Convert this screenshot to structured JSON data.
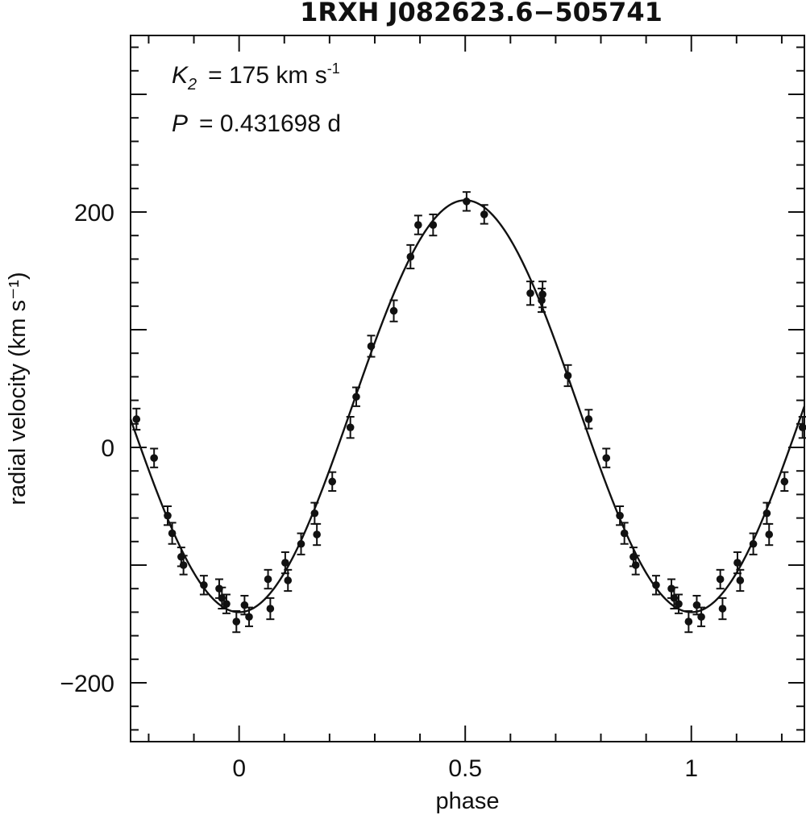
{
  "chart_data": {
    "type": "scatter",
    "title": "1RXH J082623.6−505741",
    "xlabel": "phase",
    "ylabel": "radial velocity (km s⁻¹)",
    "xlim": [
      -0.24,
      1.25
    ],
    "ylim": [
      -250,
      350
    ],
    "xticks_major": [
      0,
      0.5,
      1
    ],
    "xtick_labels": [
      "0",
      "0.5",
      "1"
    ],
    "yticks_major": [
      -200,
      0,
      200
    ],
    "ytick_labels": [
      "−200",
      "0",
      "200"
    ],
    "annotations": {
      "k_symbol": "K",
      "k_subscript": "2",
      "k_value": "= 175 km s",
      "k_exp": "-1",
      "p_symbol": "P",
      "p_value": "= 0.431698 d"
    },
    "model_curve": {
      "gamma": 35,
      "K": 175,
      "phase_of_max": 0.5
    },
    "series": [
      {
        "type": "errorbar",
        "points": [
          [
            -0.227,
            24,
            9
          ],
          [
            -0.188,
            -9,
            8
          ],
          [
            -0.158,
            -58,
            8
          ],
          [
            -0.148,
            -73,
            9
          ],
          [
            -0.128,
            -93,
            8
          ],
          [
            -0.123,
            -100,
            8
          ],
          [
            -0.078,
            -117,
            8
          ],
          [
            -0.044,
            -120,
            8
          ],
          [
            -0.038,
            -128,
            9
          ],
          [
            -0.028,
            -133,
            8
          ],
          [
            -0.006,
            -148,
            9
          ],
          [
            0.012,
            -134,
            8
          ],
          [
            0.022,
            -144,
            8
          ],
          [
            0.064,
            -112,
            8
          ],
          [
            0.069,
            -137,
            9
          ],
          [
            0.102,
            -98,
            9
          ],
          [
            0.108,
            -113,
            9
          ],
          [
            0.137,
            -82,
            9
          ],
          [
            0.167,
            -56,
            9
          ],
          [
            0.172,
            -74,
            9
          ],
          [
            0.206,
            -29,
            8
          ],
          [
            0.246,
            17,
            9
          ],
          [
            0.259,
            43,
            8
          ],
          [
            0.292,
            86,
            9
          ],
          [
            0.342,
            116,
            9
          ],
          [
            0.379,
            162,
            10
          ],
          [
            0.396,
            189,
            8
          ],
          [
            0.429,
            189,
            9
          ],
          [
            0.503,
            209,
            8
          ],
          [
            0.542,
            198,
            8
          ],
          [
            0.644,
            131,
            10
          ],
          [
            0.669,
            125,
            10
          ],
          [
            0.671,
            130,
            11
          ],
          [
            0.727,
            61,
            9
          ],
          [
            0.773,
            24,
            8
          ],
          [
            0.812,
            -9,
            8
          ],
          [
            0.842,
            -58,
            8
          ],
          [
            0.852,
            -73,
            9
          ],
          [
            0.872,
            -93,
            8
          ],
          [
            0.877,
            -100,
            8
          ],
          [
            0.922,
            -117,
            8
          ],
          [
            0.956,
            -120,
            8
          ],
          [
            0.962,
            -128,
            9
          ],
          [
            0.972,
            -133,
            8
          ],
          [
            0.994,
            -148,
            9
          ],
          [
            1.012,
            -134,
            8
          ],
          [
            1.022,
            -144,
            8
          ],
          [
            1.064,
            -112,
            8
          ],
          [
            1.069,
            -137,
            9
          ],
          [
            1.102,
            -98,
            9
          ],
          [
            1.108,
            -113,
            9
          ],
          [
            1.137,
            -82,
            9
          ],
          [
            1.167,
            -56,
            9
          ],
          [
            1.172,
            -74,
            9
          ],
          [
            1.206,
            -29,
            8
          ],
          [
            1.246,
            17,
            9
          ]
        ]
      }
    ],
    "grid": false,
    "legend": "none"
  }
}
